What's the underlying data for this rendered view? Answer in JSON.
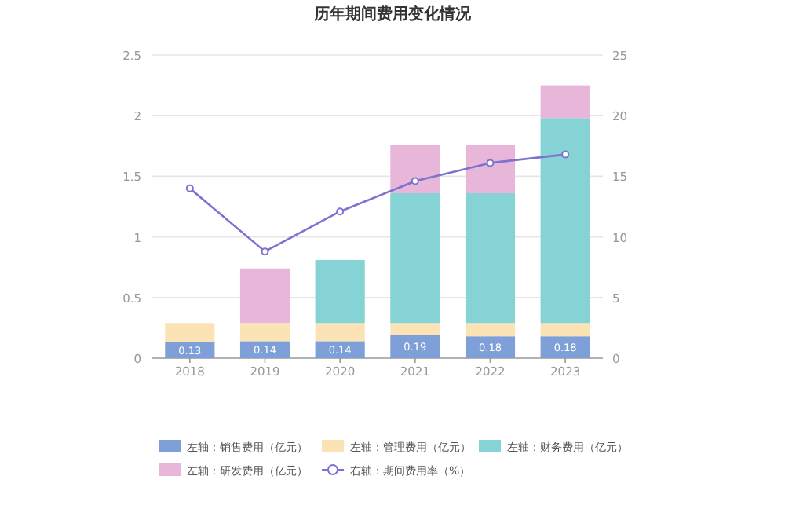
{
  "chart_data": {
    "type": "bar",
    "stacked": true,
    "title": "历年期间费用变化情况",
    "categories": [
      "2018",
      "2019",
      "2020",
      "2021",
      "2022",
      "2023"
    ],
    "series": [
      {
        "name": "左轴：销售费用（亿元）",
        "color": "#7f9fd8",
        "values": [
          0.13,
          0.14,
          0.14,
          0.19,
          0.18,
          0.18
        ],
        "value_labels": [
          "0.13",
          "0.14",
          "0.14",
          "0.19",
          "0.18",
          "0.18"
        ]
      },
      {
        "name": "左轴：管理费用（亿元）",
        "color": "#fbe3b6",
        "values": [
          0.16,
          0.15,
          0.15,
          0.1,
          0.11,
          0.11
        ]
      },
      {
        "name": "左轴：财务费用（亿元）",
        "color": "#86d3d6",
        "values": [
          null,
          null,
          0.52,
          1.07,
          1.07,
          1.69
        ]
      },
      {
        "name": "左轴：研发费用（亿元）",
        "color": "#e8b6d8",
        "values": [
          null,
          0.45,
          null,
          0.4,
          0.4,
          0.27
        ]
      },
      {
        "name": "右轴：期间费用率（%）",
        "type": "line",
        "axis": "y2",
        "color": "#7b72d1",
        "marker": "circle",
        "values": [
          14.0,
          8.8,
          12.1,
          14.6,
          16.1,
          16.8
        ]
      }
    ],
    "ylim": [
      0,
      2.5
    ],
    "yticks": [
      0,
      0.5,
      1,
      1.5,
      2,
      2.5
    ],
    "y2lim": [
      0,
      25
    ],
    "y2ticks": [
      0,
      5,
      10,
      15,
      20,
      25
    ],
    "grid": "y",
    "legend": "bottom"
  }
}
